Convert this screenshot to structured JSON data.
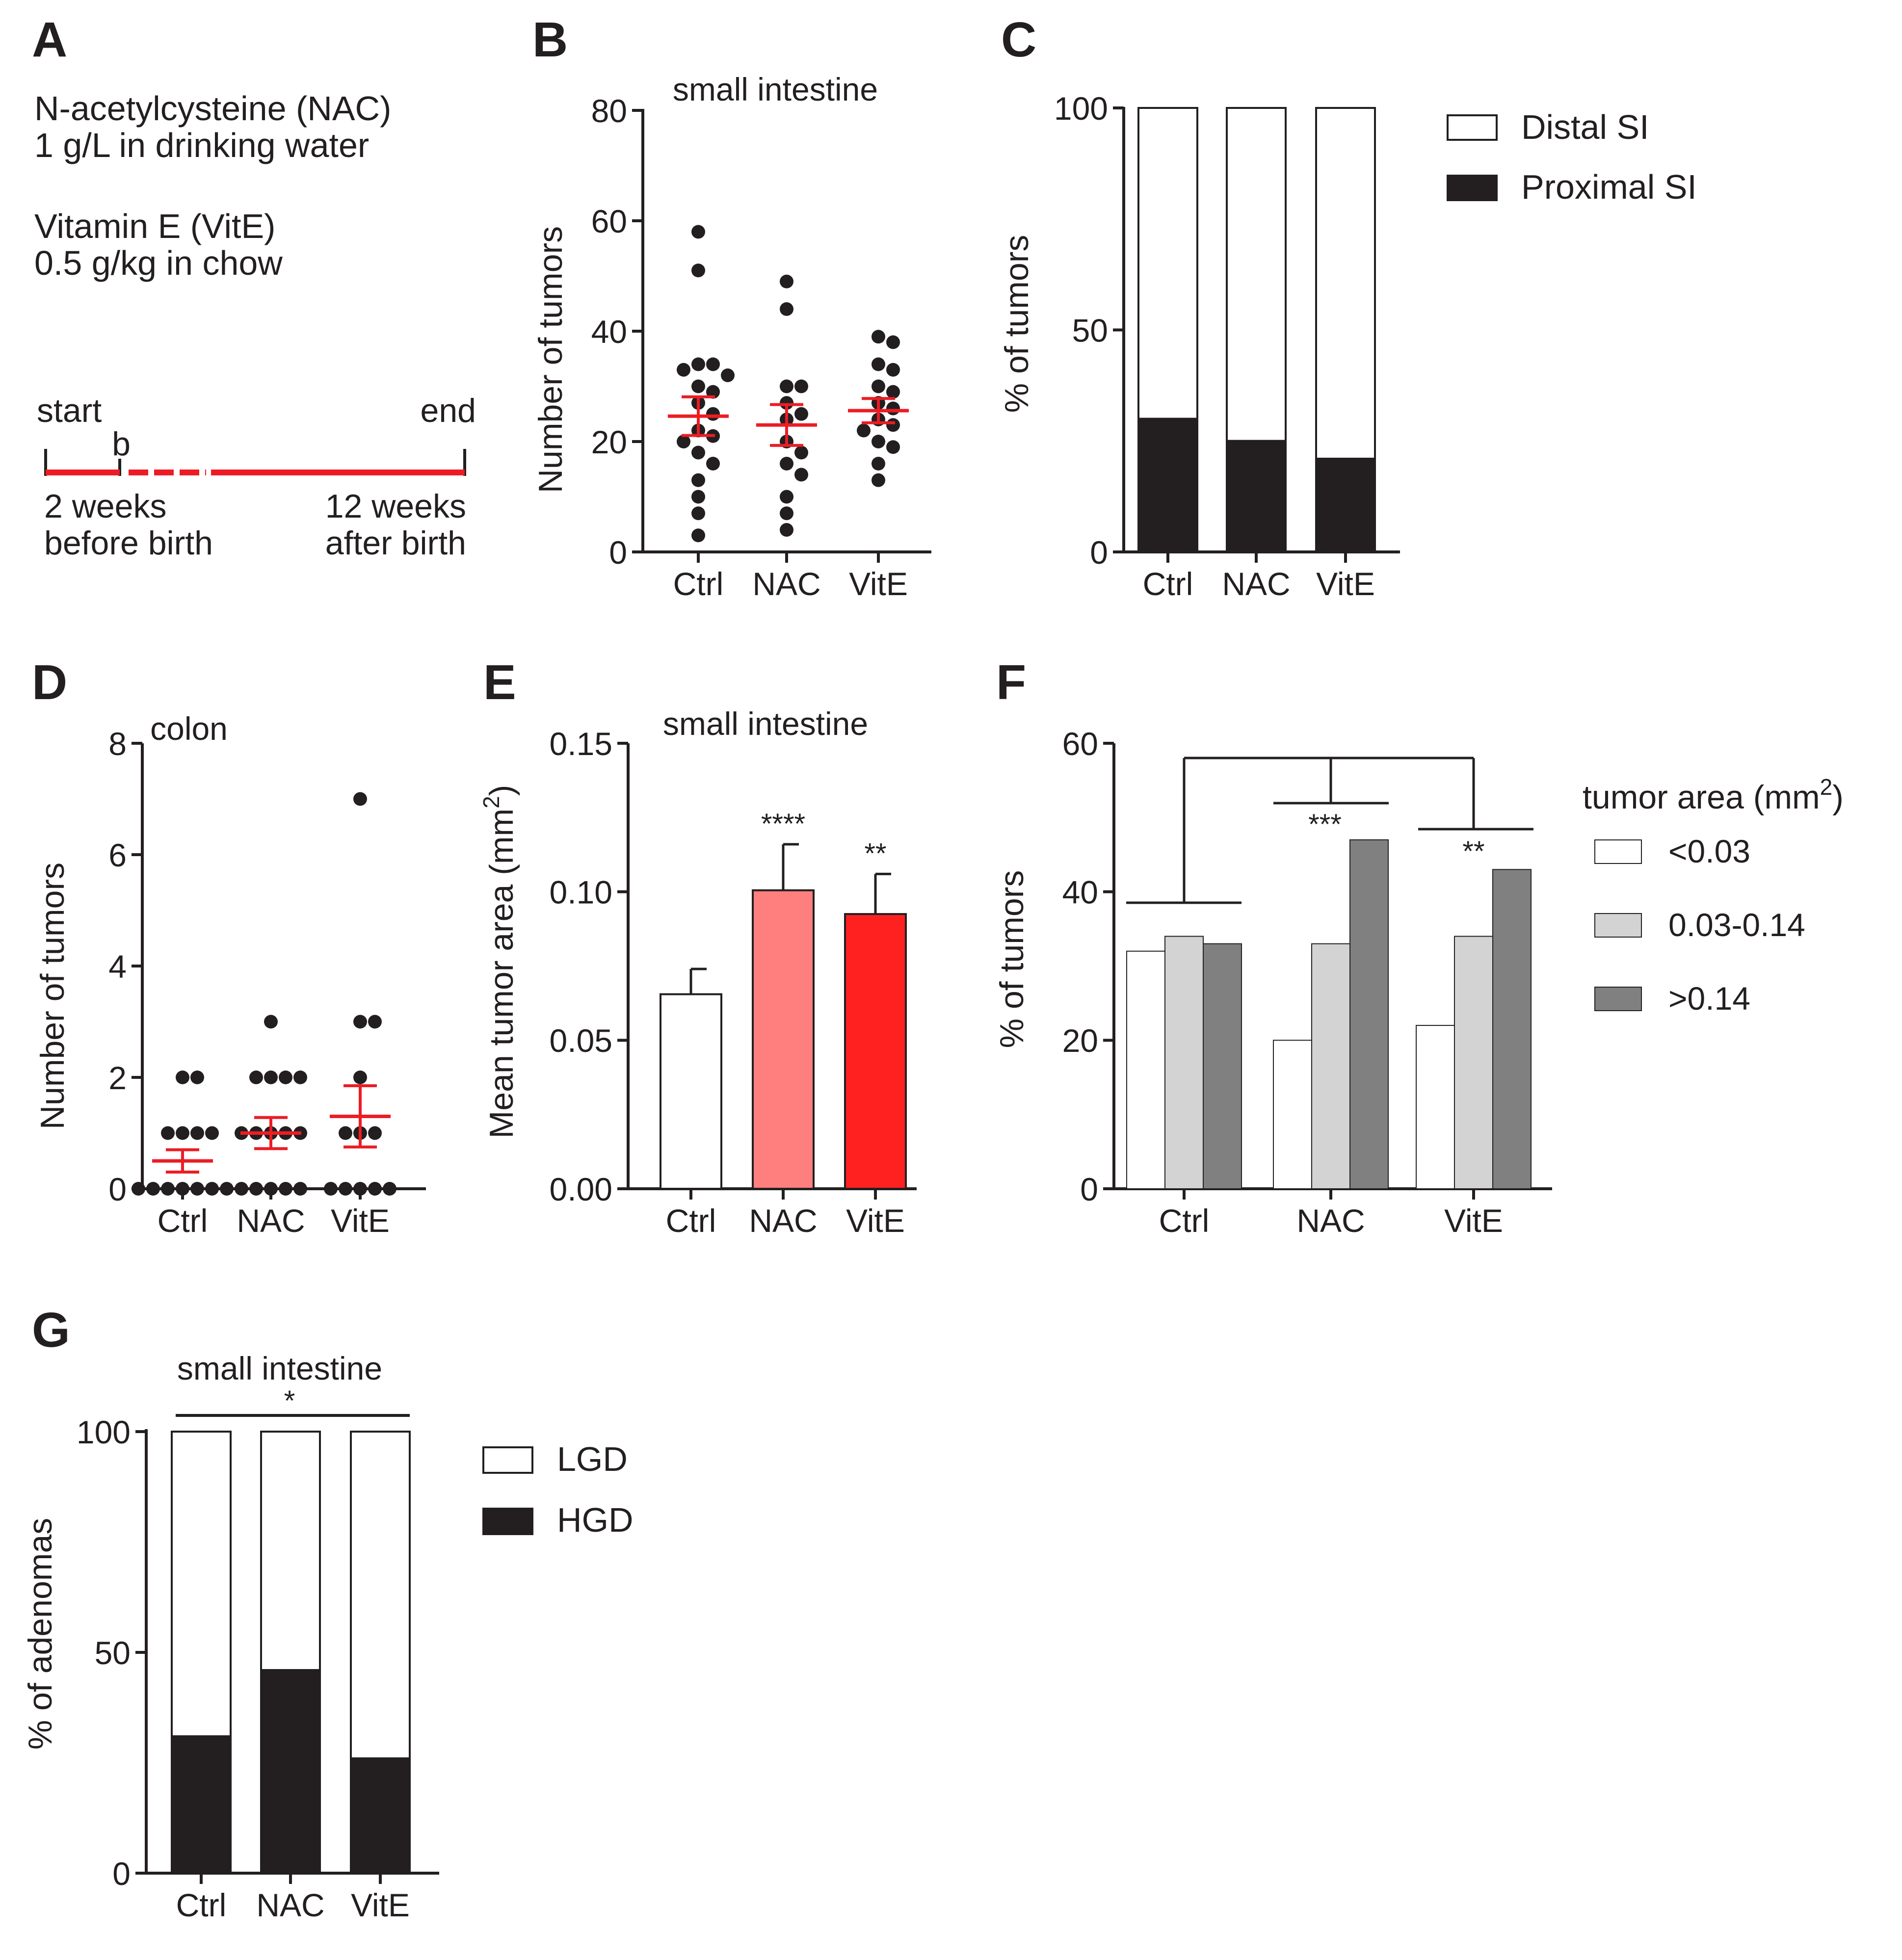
{
  "colors": {
    "axis": "#231f20",
    "dark_bar": "#231f20",
    "red": "#ed1c24",
    "light_red": "#ff7f7f",
    "mid_red": "#ff2020",
    "light_gray": "#d3d3d3",
    "dark_gray": "#808080",
    "white": "#ffffff"
  },
  "panel_a": {
    "letter": "A",
    "line1": "N-acetylcysteine (NAC)",
    "line2": "1 g/L in drinking water",
    "line3": "Vitamin E (VitE)",
    "line4": "0.5 g/kg in chow",
    "start": "start",
    "end": "end",
    "b": "b",
    "left_line1": "2 weeks",
    "left_line2": "before birth",
    "right_line1": "12 weeks",
    "right_line2": "after birth"
  },
  "chart_data": [
    {
      "panel": "B",
      "type": "scatter",
      "title": "small intestine",
      "ylabel": "Number of tumors",
      "xlabel": "",
      "categories": [
        "Ctrl",
        "NAC",
        "VitE"
      ],
      "ylim": [
        0,
        80
      ],
      "yticks": [
        0,
        20,
        40,
        60,
        80
      ],
      "points": [
        [
          58,
          51,
          34,
          34,
          33,
          32,
          30,
          29,
          27,
          25,
          22,
          21,
          20,
          18,
          16,
          13,
          10,
          7,
          3
        ],
        [
          49,
          44,
          30,
          30,
          27,
          25,
          24,
          20,
          18,
          16,
          14,
          10,
          7,
          4
        ],
        [
          39,
          38,
          34,
          33,
          30,
          29,
          27,
          26,
          24,
          23,
          22,
          20,
          19,
          16,
          13
        ]
      ],
      "means": [
        24.6,
        23.0,
        25.6
      ],
      "sem": [
        3.5,
        3.7,
        2.2
      ]
    },
    {
      "panel": "C",
      "type": "bar",
      "title": "",
      "ylabel": "% of tumors",
      "xlabel": "",
      "categories": [
        "Ctrl",
        "NAC",
        "VitE"
      ],
      "ylim": [
        0,
        100
      ],
      "yticks": [
        0,
        50,
        100
      ],
      "series": [
        {
          "name": "Proximal SI",
          "values": [
            30,
            25,
            21
          ]
        },
        {
          "name": "Distal SI",
          "values": [
            70,
            75,
            79
          ]
        }
      ],
      "legend": [
        "Distal SI",
        "Proximal SI"
      ]
    },
    {
      "panel": "D",
      "type": "scatter",
      "title": "colon",
      "ylabel": "Number of tumors",
      "xlabel": "",
      "categories": [
        "Ctrl",
        "NAC",
        "VitE"
      ],
      "ylim": [
        0,
        8
      ],
      "yticks": [
        0,
        2,
        4,
        6,
        8
      ],
      "points": [
        [
          2,
          2,
          1,
          1,
          1,
          1,
          0,
          0,
          0,
          0,
          0,
          0,
          0,
          0
        ],
        [
          3,
          2,
          2,
          2,
          2,
          1,
          1,
          1,
          1,
          1,
          0,
          0,
          0,
          0
        ],
        [
          7,
          3,
          3,
          2,
          1,
          1,
          1,
          0,
          0,
          0,
          0,
          0
        ]
      ],
      "means": [
        0.5,
        1.0,
        1.3
      ],
      "sem": [
        0.2,
        0.28,
        0.55
      ]
    },
    {
      "panel": "E",
      "type": "bar",
      "title": "small intestine",
      "ylabel": "Mean tumor area (mm",
      "ylabel_sup": "2",
      "ylabel_end": ")",
      "xlabel": "",
      "categories": [
        "Ctrl",
        "NAC",
        "VitE"
      ],
      "ylim": [
        0,
        0.15
      ],
      "yticks": [
        "0.00",
        "0.05",
        "0.10",
        "0.15"
      ],
      "values": [
        0.0655,
        0.1005,
        0.0925
      ],
      "errors": [
        0.0085,
        0.0155,
        0.0135
      ],
      "significance": [
        "",
        "****",
        "**"
      ]
    },
    {
      "panel": "F",
      "type": "bar",
      "title": "",
      "ylabel": "% of tumors",
      "xlabel": "",
      "categories": [
        "Ctrl",
        "NAC",
        "VitE"
      ],
      "ylim": [
        0,
        60
      ],
      "yticks": [
        0,
        20,
        40,
        60
      ],
      "legend_title": "tumor area (mm",
      "legend_title_sup": "2",
      "legend_title_end": ")",
      "series": [
        {
          "name": "<0.03",
          "values": [
            32,
            20,
            22
          ]
        },
        {
          "name": "0.03-0.14",
          "values": [
            34,
            33,
            34
          ]
        },
        {
          "name": ">0.14",
          "values": [
            33,
            47,
            43
          ]
        }
      ],
      "significance": [
        "",
        "***",
        "**"
      ]
    },
    {
      "panel": "G",
      "type": "bar",
      "title": "small intestine",
      "ylabel": "% of adenomas",
      "xlabel": "",
      "categories": [
        "Ctrl",
        "NAC",
        "VitE"
      ],
      "ylim": [
        0,
        100
      ],
      "yticks": [
        0,
        50,
        100
      ],
      "series": [
        {
          "name": "HGD",
          "values": [
            31,
            46,
            26
          ]
        },
        {
          "name": "LGD",
          "values": [
            69,
            54,
            74
          ]
        }
      ],
      "legend": [
        "LGD",
        "HGD"
      ],
      "significance": "*"
    }
  ]
}
